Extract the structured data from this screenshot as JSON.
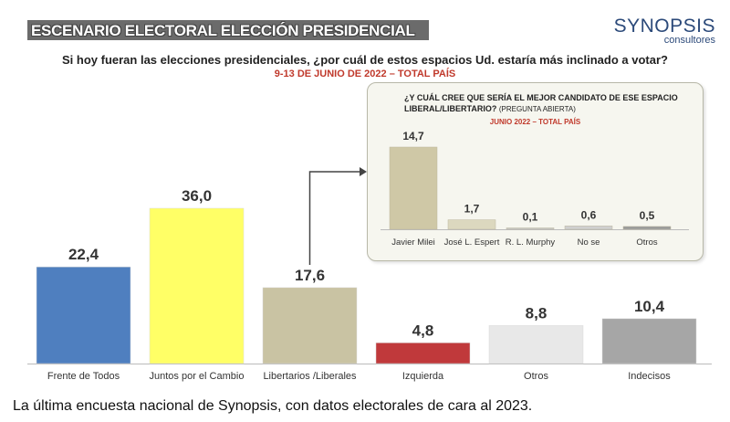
{
  "header": {
    "banner": "ESCENARIO ELECTORAL ELECCIÓN PRESIDENCIAL",
    "brand_name": "SYNOPSIS",
    "brand_sub": "consultores",
    "question": "Si hoy fueran las elecciones presidenciales, ¿por cuál de estos espacios Ud. estaría más inclinado a votar?",
    "dates": "9-13 DE JUNIO DE 2022 – TOTAL PAÍS"
  },
  "inset": {
    "question": "¿Y CUÁL CREE QUE SERÍA EL MEJOR CANDIDATO DE ESE ESPACIO LIBERAL/LIBERTARIO?",
    "question_note": "(PREGUNTA ABIERTA)",
    "dates": "JUNIO 2022 – TOTAL PAÍS"
  },
  "caption": "La última encuesta nacional de Synopsis, con datos electorales de cara al 2023.",
  "chart_data": [
    {
      "type": "bar",
      "categories": [
        "Frente de Todos",
        "Juntos por el Cambio",
        "Libertarios /Liberales",
        "Izquierda",
        "Otros",
        "Indecisos"
      ],
      "values": [
        22.4,
        36.0,
        17.6,
        4.8,
        8.8,
        10.4
      ],
      "value_labels": [
        "22,4",
        "36,0",
        "17,6",
        "4,8",
        "8,8",
        "10,4"
      ],
      "colors": [
        "#4f7fbf",
        "#ffff66",
        "#c9c3a3",
        "#c0393b",
        "#e8e8e8",
        "#a6a6a6"
      ],
      "ylim": [
        0,
        40
      ],
      "grid": false
    },
    {
      "type": "bar",
      "categories": [
        "Javier Milei",
        "José L. Espert",
        "R. L. Murphy",
        "No se",
        "Otros"
      ],
      "values": [
        14.7,
        1.7,
        0.1,
        0.6,
        0.5
      ],
      "value_labels": [
        "14,7",
        "1,7",
        "0,1",
        "0,6",
        "0,5"
      ],
      "colors": [
        "#cfc8a6",
        "#dcd8bf",
        "#c8c8c8",
        "#cfcfcf",
        "#9a9a9a"
      ],
      "ylim": [
        0,
        16
      ],
      "grid": false
    }
  ]
}
